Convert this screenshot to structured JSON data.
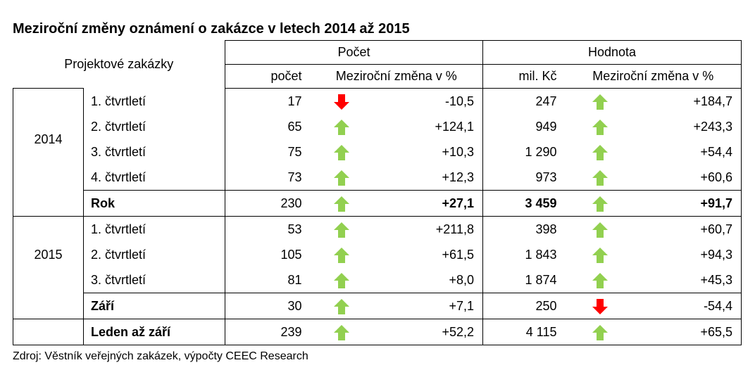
{
  "title": "Meziroční změny oznámení o zakázce v letech 2014 až 2015",
  "source": "Zdroj: Věstník veřejných zakázek, výpočty CEEC Research",
  "colors": {
    "up": "#92d050",
    "down": "#ff0000"
  },
  "header": {
    "row_label": "Projektové zakázky",
    "group_count": "Počet",
    "group_value": "Hodnota",
    "col_count": "počet",
    "col_count_change": "Meziroční změna v %",
    "col_value": "mil. Kč",
    "col_value_change": "Meziroční změna v %"
  },
  "years": [
    "2014",
    "2015"
  ],
  "rows": [
    {
      "label": "1. čtvrtletí",
      "count": "17",
      "count_dir": "down",
      "count_change": "-10,5",
      "value": "247",
      "value_dir": "up",
      "value_change": "+184,7"
    },
    {
      "label": "2. čtvrtletí",
      "count": "65",
      "count_dir": "up",
      "count_change": "+124,1",
      "value": "949",
      "value_dir": "up",
      "value_change": "+243,3"
    },
    {
      "label": "3. čtvrtletí",
      "count": "75",
      "count_dir": "up",
      "count_change": "+10,3",
      "value": "1 290",
      "value_dir": "up",
      "value_change": "+54,4"
    },
    {
      "label": "4. čtvrtletí",
      "count": "73",
      "count_dir": "up",
      "count_change": "+12,3",
      "value": "973",
      "value_dir": "up",
      "value_change": "+60,6"
    },
    {
      "label": "Rok",
      "count": "230",
      "count_dir": "up",
      "count_change": "+27,1",
      "value": "3 459",
      "value_dir": "up",
      "value_change": "+91,7"
    },
    {
      "label": "1. čtvrtletí",
      "count": "53",
      "count_dir": "up",
      "count_change": "+211,8",
      "value": "398",
      "value_dir": "up",
      "value_change": "+60,7"
    },
    {
      "label": "2. čtvrtletí",
      "count": "105",
      "count_dir": "up",
      "count_change": "+61,5",
      "value": "1 843",
      "value_dir": "up",
      "value_change": "+94,3"
    },
    {
      "label": "3. čtvrtletí",
      "count": "81",
      "count_dir": "up",
      "count_change": "+8,0",
      "value": "1 874",
      "value_dir": "up",
      "value_change": "+45,3"
    },
    {
      "label": "Září",
      "count": "30",
      "count_dir": "up",
      "count_change": "+7,1",
      "value": "250",
      "value_dir": "down",
      "value_change": "-54,4"
    },
    {
      "label": "Leden až září",
      "count": "239",
      "count_dir": "up",
      "count_change": "+52,2",
      "value": "4 115",
      "value_dir": "up",
      "value_change": "+65,5"
    }
  ]
}
